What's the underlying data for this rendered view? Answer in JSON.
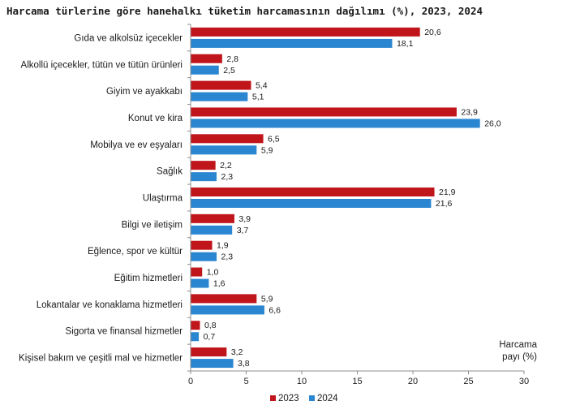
{
  "chart_data": {
    "type": "bar",
    "orientation": "horizontal",
    "title": "Harcama türlerine göre hanehalkı tüketim harcamasının dağılımı (%), 2023, 2024",
    "categories": [
      "Gıda ve alkolsüz içecekler",
      "Alkollü içecekler, tütün ve tütün ürünleri",
      "Giyim ve ayakkabı",
      "Konut ve kira",
      "Mobilya ve ev eşyaları",
      "Sağlık",
      "Ulaştırma",
      "Bilgi ve iletişim",
      "Eğlence, spor ve kültür",
      "Eğitim hizmetleri",
      "Lokantalar ve konaklama hizmetleri",
      "Sigorta ve finansal hizmetler",
      "Kişisel bakım ve çeşitli mal ve hizmetler"
    ],
    "series": [
      {
        "name": "2023",
        "color": "#c0151b",
        "values": [
          20.6,
          2.8,
          5.4,
          23.9,
          6.5,
          2.2,
          21.9,
          3.9,
          1.9,
          1.0,
          5.9,
          0.8,
          3.2
        ],
        "labels": [
          "20,6",
          "2,8",
          "5,4",
          "23,9",
          "6,5",
          "2,2",
          "21,9",
          "3,9",
          "1,9",
          "1,0",
          "5,9",
          "0,8",
          "3,2"
        ]
      },
      {
        "name": "2024",
        "color": "#2b86d1",
        "values": [
          18.1,
          2.5,
          5.1,
          26.0,
          5.9,
          2.3,
          21.6,
          3.7,
          2.3,
          1.6,
          6.6,
          0.7,
          3.8
        ],
        "labels": [
          "18,1",
          "2,5",
          "5,1",
          "26,0",
          "5,9",
          "2,3",
          "21,6",
          "3,7",
          "2,3",
          "1,6",
          "6,6",
          "0,7",
          "3,8"
        ]
      }
    ],
    "xlim": [
      0,
      30
    ],
    "xticks": [
      0,
      5,
      10,
      15,
      20,
      25,
      30
    ],
    "xlabel_lines": [
      "Harcama",
      "payı  (%)"
    ],
    "legend_position": "bottom-center",
    "grid": false
  }
}
